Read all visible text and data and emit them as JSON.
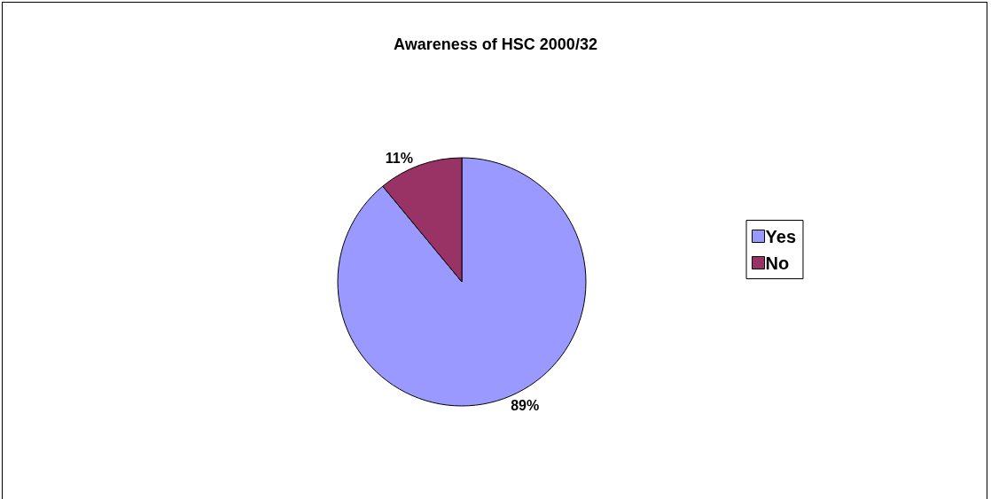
{
  "chart_data": {
    "type": "pie",
    "title": "Awareness of HSC 2000/32",
    "categories": [
      "Yes",
      "No"
    ],
    "values": [
      89,
      11
    ],
    "colors": [
      "#9999ff",
      "#993366"
    ],
    "value_labels": [
      "89%",
      "11%"
    ],
    "legend": "right"
  }
}
